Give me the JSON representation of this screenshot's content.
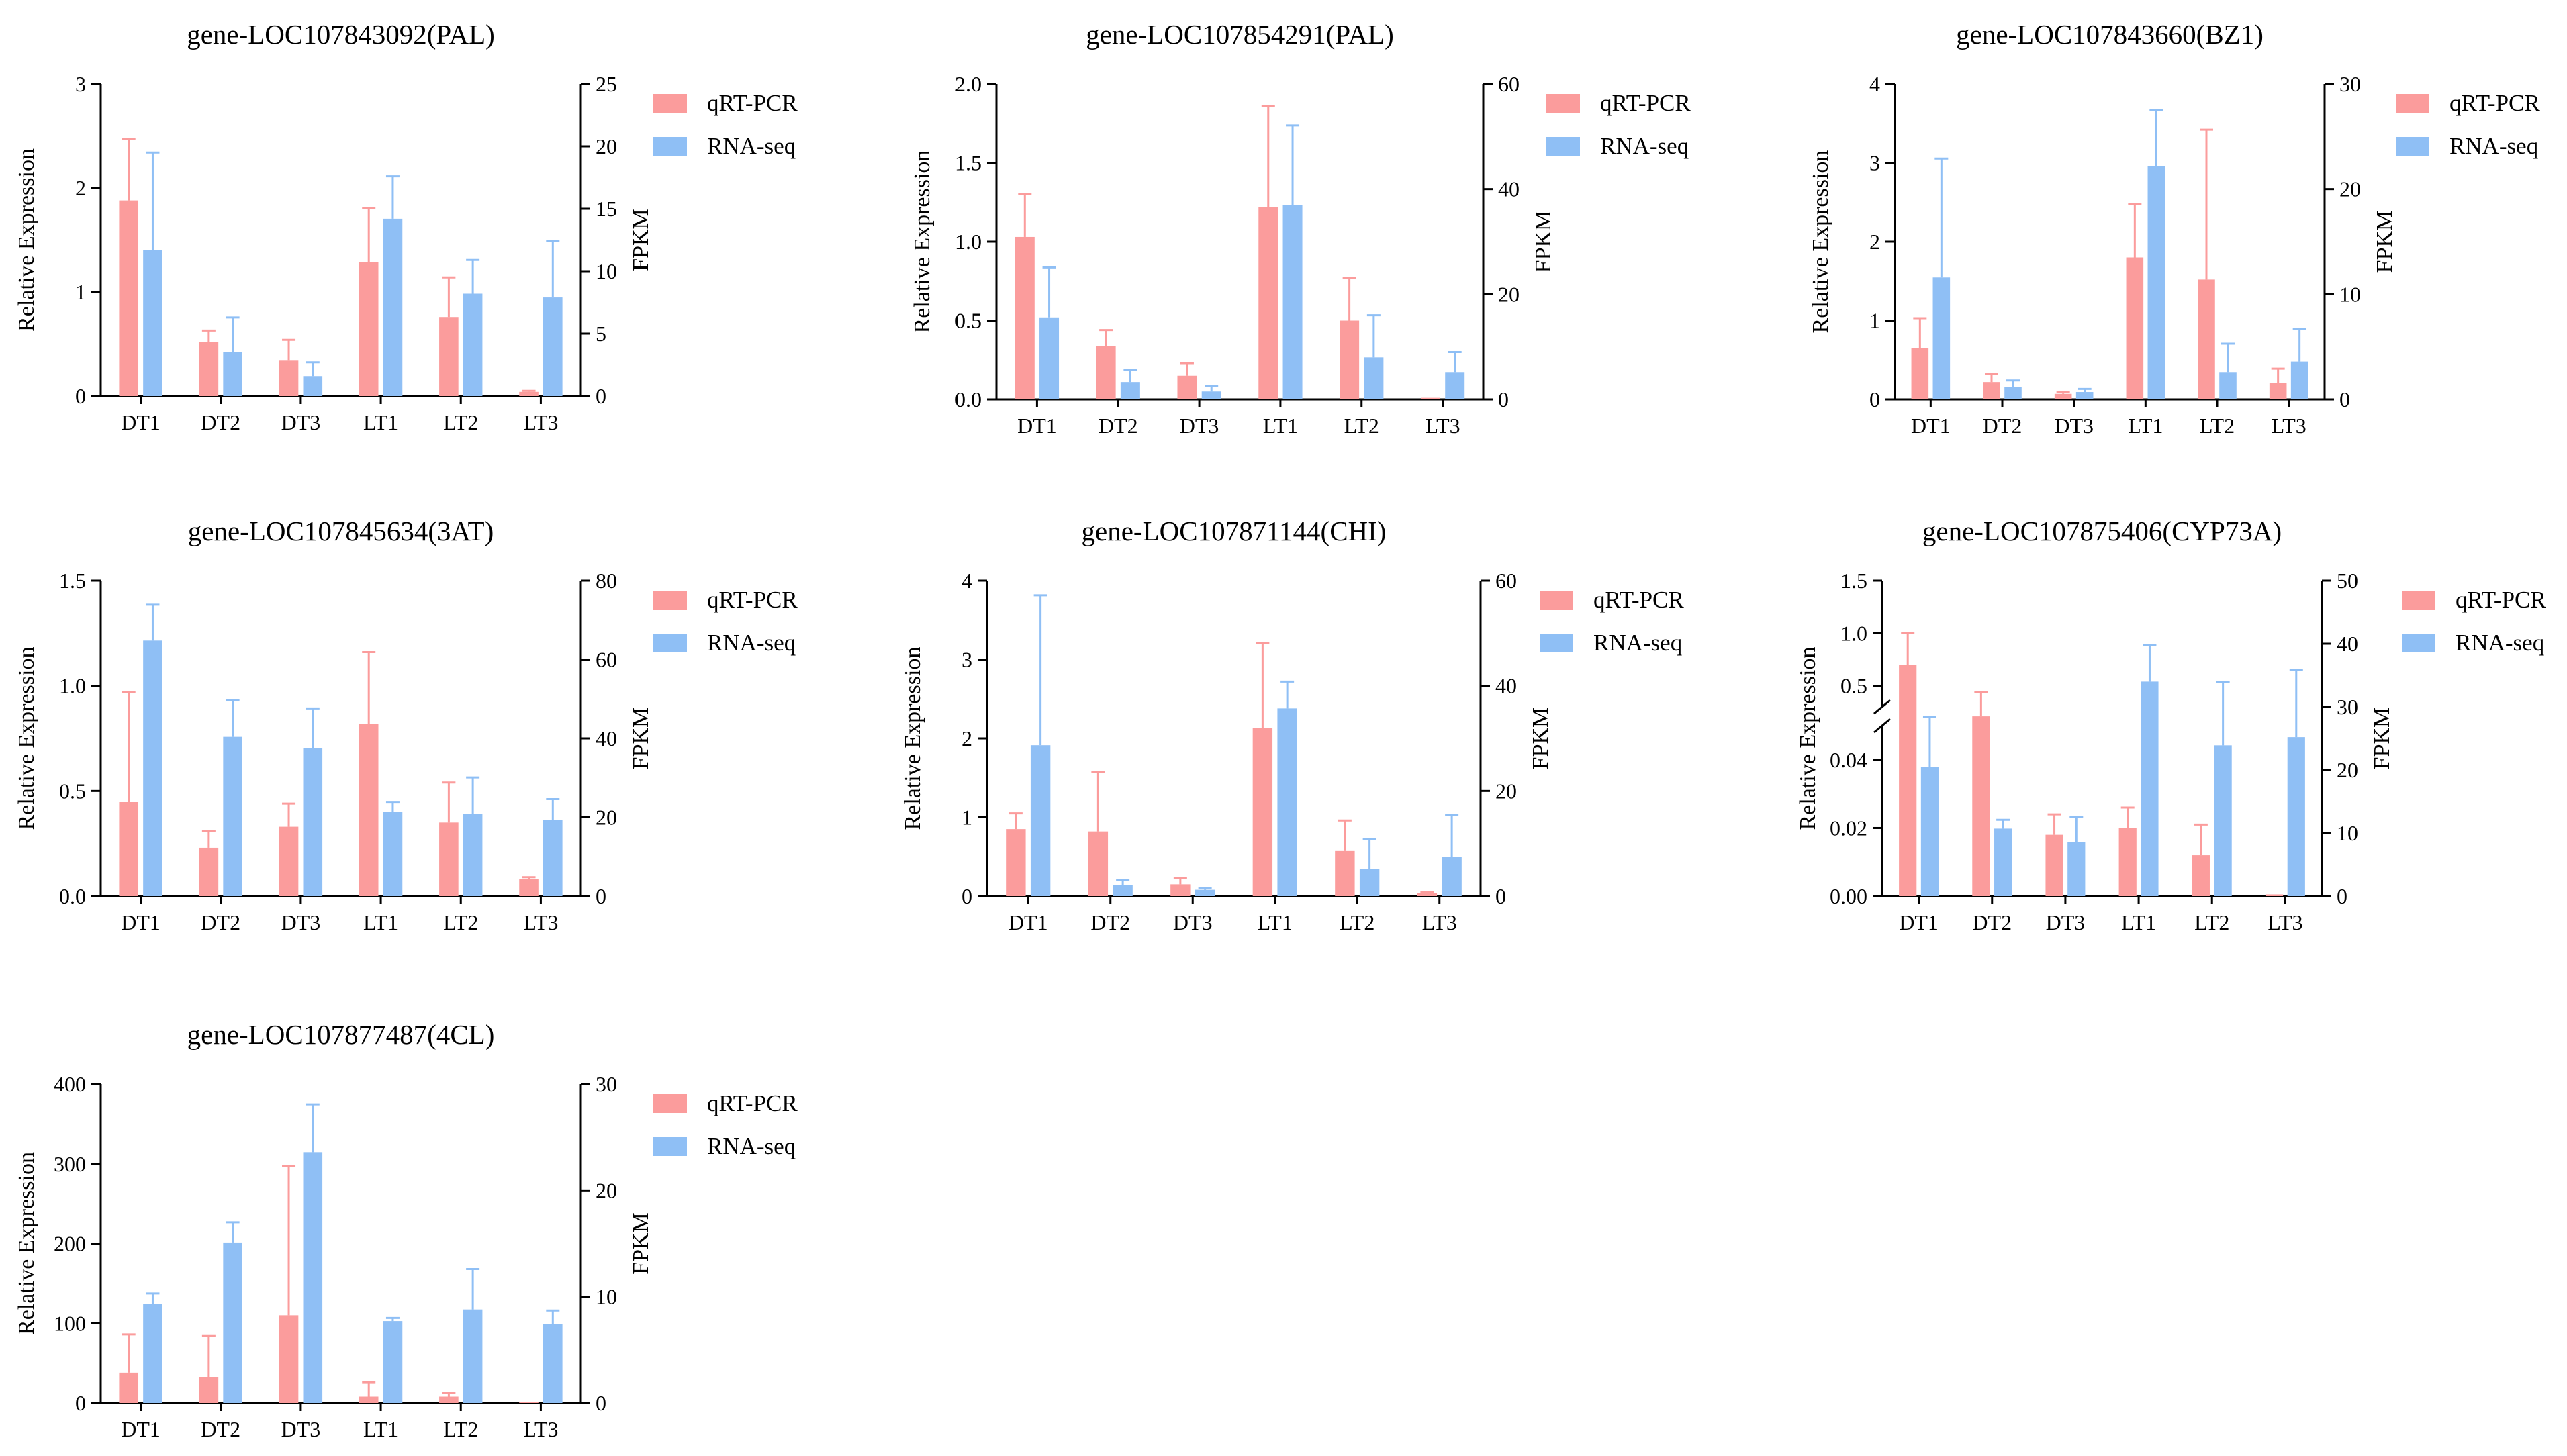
{
  "colors": {
    "qpcr": "#FB9C9C",
    "rnaseq": "#8FBFF5",
    "axis": "#000000"
  },
  "legend_labels": [
    "qRT-PCR",
    "RNA-seq"
  ],
  "chart_data": [
    {
      "type": "bar",
      "title": "gene-LOC107843092(PAL)",
      "categories": [
        "DT1",
        "DT2",
        "DT3",
        "LT1",
        "LT2",
        "LT3"
      ],
      "ylabel": "Relative Expression",
      "y2label": "FPKM",
      "ylim": [
        0,
        3
      ],
      "yticks": [
        0,
        1,
        2,
        3
      ],
      "y2lim": [
        0,
        25
      ],
      "y2ticks": [
        0,
        5,
        10,
        15,
        20,
        25
      ],
      "series": [
        {
          "name": "qRT-PCR",
          "axis": "left",
          "values": [
            1.88,
            0.52,
            0.34,
            1.29,
            0.76,
            0.04
          ],
          "errors": [
            0.59,
            0.11,
            0.2,
            0.52,
            0.38,
            0.01
          ]
        },
        {
          "name": "RNA-seq",
          "axis": "right",
          "values": [
            11.7,
            3.5,
            1.6,
            14.2,
            8.2,
            7.9
          ],
          "errors": [
            7.8,
            2.8,
            1.1,
            3.4,
            2.7,
            4.5
          ]
        }
      ]
    },
    {
      "type": "bar",
      "title": "gene-LOC107854291(PAL)",
      "categories": [
        "DT1",
        "DT2",
        "DT3",
        "LT1",
        "LT2",
        "LT3"
      ],
      "ylabel": "Relative Expression",
      "y2label": "FPKM",
      "ylim": [
        0,
        2
      ],
      "yticks": [
        0.0,
        0.5,
        1.0,
        1.5,
        2.0
      ],
      "ytick_labels": [
        "0.0",
        "0.5",
        "1.0",
        "1.5",
        "2.0"
      ],
      "y2lim": [
        0,
        60
      ],
      "y2ticks": [
        0,
        20,
        40,
        60
      ],
      "series": [
        {
          "name": "qRT-PCR",
          "axis": "left",
          "values": [
            1.03,
            0.34,
            0.15,
            1.22,
            0.5,
            0.01
          ],
          "errors": [
            0.27,
            0.1,
            0.08,
            0.64,
            0.27,
            0.0
          ]
        },
        {
          "name": "RNA-seq",
          "axis": "right",
          "values": [
            15.6,
            3.3,
            1.5,
            37.0,
            8.0,
            5.2
          ],
          "errors": [
            9.5,
            2.3,
            1.0,
            15.1,
            8.0,
            3.8
          ]
        }
      ]
    },
    {
      "type": "bar",
      "title": "gene-LOC107843660(BZ1)",
      "categories": [
        "DT1",
        "DT2",
        "DT3",
        "LT1",
        "LT2",
        "LT3"
      ],
      "ylabel": "Relative Expression",
      "y2label": "FPKM",
      "ylim": [
        0,
        4
      ],
      "yticks": [
        0,
        1,
        2,
        3,
        4
      ],
      "y2lim": [
        0,
        30
      ],
      "y2ticks": [
        0,
        10,
        20,
        30
      ],
      "series": [
        {
          "name": "qRT-PCR",
          "axis": "left",
          "values": [
            0.65,
            0.22,
            0.07,
            1.8,
            1.52,
            0.21
          ],
          "errors": [
            0.38,
            0.1,
            0.02,
            0.68,
            1.9,
            0.18
          ]
        },
        {
          "name": "RNA-seq",
          "axis": "right",
          "values": [
            11.6,
            1.2,
            0.7,
            22.2,
            2.6,
            3.6
          ],
          "errors": [
            11.3,
            0.6,
            0.3,
            5.3,
            2.7,
            3.1
          ]
        }
      ]
    },
    {
      "type": "bar",
      "title": "gene-LOC107845634(3AT)",
      "categories": [
        "DT1",
        "DT2",
        "DT3",
        "LT1",
        "LT2",
        "LT3"
      ],
      "ylabel": "Relative Expression",
      "y2label": "FPKM",
      "ylim": [
        0,
        1.5
      ],
      "yticks": [
        0.0,
        0.5,
        1.0,
        1.5
      ],
      "ytick_labels": [
        "0.0",
        "0.5",
        "1.0",
        "1.5"
      ],
      "y2lim": [
        0,
        80
      ],
      "y2ticks": [
        0,
        20,
        40,
        60,
        80
      ],
      "series": [
        {
          "name": "qRT-PCR",
          "axis": "left",
          "values": [
            0.45,
            0.23,
            0.33,
            0.82,
            0.35,
            0.08
          ],
          "errors": [
            0.52,
            0.08,
            0.11,
            0.34,
            0.19,
            0.01
          ]
        },
        {
          "name": "RNA-seq",
          "axis": "right",
          "values": [
            64.8,
            40.4,
            37.6,
            21.4,
            20.8,
            19.4
          ],
          "errors": [
            9.1,
            9.3,
            10.0,
            2.5,
            9.3,
            5.2
          ]
        }
      ]
    },
    {
      "type": "bar",
      "title": "gene-LOC107871144(CHI)",
      "categories": [
        "DT1",
        "DT2",
        "DT3",
        "LT1",
        "LT2",
        "LT3"
      ],
      "ylabel": "Relative Expression",
      "y2label": "FPKM",
      "ylim": [
        0,
        4
      ],
      "yticks": [
        0,
        1,
        2,
        3,
        4
      ],
      "y2lim": [
        0,
        60
      ],
      "y2ticks": [
        0,
        20,
        40,
        60
      ],
      "series": [
        {
          "name": "qRT-PCR",
          "axis": "left",
          "values": [
            0.85,
            0.82,
            0.15,
            2.13,
            0.58,
            0.04
          ],
          "errors": [
            0.2,
            0.75,
            0.08,
            1.08,
            0.38,
            0.01
          ]
        },
        {
          "name": "RNA-seq",
          "axis": "right",
          "values": [
            28.7,
            2.1,
            1.2,
            35.7,
            5.2,
            7.5
          ],
          "errors": [
            28.5,
            0.9,
            0.4,
            5.1,
            5.7,
            7.9
          ]
        }
      ]
    },
    {
      "type": "bar",
      "title": "gene-LOC107875406(CYP73A)",
      "categories": [
        "DT1",
        "DT2",
        "DT3",
        "LT1",
        "LT2",
        "LT3"
      ],
      "ylabel": "Relative Expression",
      "y2label": "FPKM",
      "ylim": [
        0,
        1.5
      ],
      "y_break": [
        0.05,
        0.3
      ],
      "yticks": [
        0.0,
        0.02,
        0.04,
        0.5,
        1.0,
        1.5
      ],
      "ytick_labels": [
        "0.00",
        "0.02",
        "0.04",
        "0.5",
        "1.0",
        "1.5"
      ],
      "y2lim": [
        0,
        50
      ],
      "y2ticks": [
        0,
        10,
        20,
        30,
        40,
        50
      ],
      "series": [
        {
          "name": "qRT-PCR",
          "axis": "left",
          "values": [
            0.7,
            0.14,
            0.018,
            0.02,
            0.012,
            0.0005
          ],
          "errors": [
            0.3,
            0.3,
            0.006,
            0.006,
            0.009,
            0.0
          ]
        },
        {
          "name": "RNA-seq",
          "axis": "right",
          "values": [
            20.5,
            10.7,
            8.6,
            34.0,
            23.9,
            25.2
          ],
          "errors": [
            7.9,
            1.4,
            3.9,
            5.8,
            10.0,
            10.7
          ]
        }
      ]
    },
    {
      "type": "bar",
      "title": "gene-LOC107877487(4CL)",
      "categories": [
        "DT1",
        "DT2",
        "DT3",
        "LT1",
        "LT2",
        "LT3"
      ],
      "ylabel": "Relative Expression",
      "y2label": "FPKM",
      "ylim": [
        0,
        400
      ],
      "yticks": [
        0,
        100,
        200,
        300,
        400
      ],
      "y2lim": [
        0,
        30
      ],
      "y2ticks": [
        0,
        10,
        20,
        30
      ],
      "series": [
        {
          "name": "qRT-PCR",
          "axis": "left",
          "values": [
            38,
            32,
            110,
            8,
            8,
            1
          ],
          "errors": [
            48,
            52,
            187,
            18,
            5,
            0
          ]
        },
        {
          "name": "RNA-seq",
          "axis": "right",
          "values": [
            9.3,
            15.1,
            23.6,
            7.7,
            8.8,
            7.4
          ],
          "errors": [
            1.0,
            1.9,
            4.5,
            0.3,
            3.8,
            1.3
          ]
        }
      ]
    }
  ]
}
